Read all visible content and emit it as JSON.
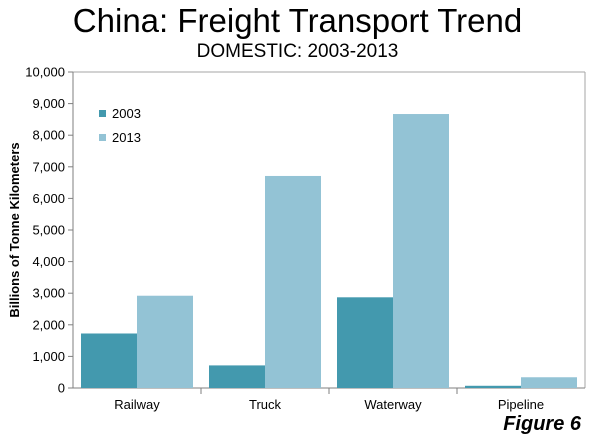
{
  "chart_data": {
    "type": "bar",
    "title": "China: Freight Transport Trend",
    "subtitle": "DOMESTIC: 2003-2013",
    "ylabel": "Billions of Tonne Kilometers",
    "xlabel": "",
    "ylim": [
      0,
      10000
    ],
    "yticks": [
      0,
      1000,
      2000,
      3000,
      4000,
      5000,
      6000,
      7000,
      8000,
      9000,
      10000
    ],
    "ytick_labels": [
      "0",
      "1,000",
      "2,000",
      "3,000",
      "4,000",
      "5,000",
      "6,000",
      "7,000",
      "8,000",
      "9,000",
      "10,000"
    ],
    "categories": [
      "Railway",
      "Truck",
      "Waterway",
      "Pipeline"
    ],
    "series": [
      {
        "name": "2003",
        "values": [
          1725,
          715,
          2870,
          70
        ],
        "color": "#4399ae"
      },
      {
        "name": "2013",
        "values": [
          2920,
          6710,
          8670,
          340
        ],
        "color": "#93c3d5"
      }
    ],
    "legend_position": "top-left",
    "grid": false,
    "annotation": "Figure 6"
  }
}
